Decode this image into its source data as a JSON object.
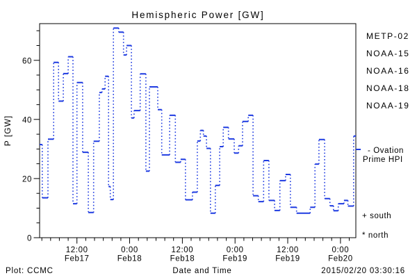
{
  "chart_data": {
    "type": "line",
    "subtype": "step",
    "title": "Hemispheric Power [GW]",
    "ylabel": "P [GW]",
    "xlabel": "Date and Time",
    "ylim": [
      0,
      72.4
    ],
    "y_ticks": [
      {
        "v": 0,
        "label": "0"
      },
      {
        "v": 20,
        "label": "20"
      },
      {
        "v": 40,
        "label": "40"
      },
      {
        "v": 60,
        "label": "60"
      }
    ],
    "y_minor_step": 5,
    "x_hours_total": 72,
    "x_start": "2015/02/17 03:30",
    "x_major_ticks": [
      {
        "hour": 8.5,
        "time": "12:00",
        "date": "Feb17"
      },
      {
        "hour": 20.5,
        "time": "0:00",
        "date": "Feb18"
      },
      {
        "hour": 32.5,
        "time": "12:00",
        "date": "Feb18"
      },
      {
        "hour": 44.5,
        "time": "0:00",
        "date": "Feb19"
      },
      {
        "hour": 56.5,
        "time": "12:00",
        "date": "Feb19"
      },
      {
        "hour": 68.5,
        "time": "0:00",
        "date": "Feb20"
      }
    ],
    "x_minor_step_hours": 2,
    "grid": false,
    "series": [
      {
        "name": "Ovation Prime HPI",
        "color": "#1e3be1",
        "style": "step-solid-horizontals-dotted-verticals",
        "end_hour": 72,
        "points": [
          [
            0.0,
            31.5
          ],
          [
            0.6,
            13.5
          ],
          [
            1.9,
            33.3
          ],
          [
            3.2,
            59.3
          ],
          [
            4.3,
            46.2
          ],
          [
            5.4,
            55.5
          ],
          [
            6.5,
            61.2
          ],
          [
            7.6,
            11.5
          ],
          [
            8.5,
            52.5
          ],
          [
            9.8,
            28.9
          ],
          [
            11.1,
            8.5
          ],
          [
            12.3,
            32.6
          ],
          [
            13.6,
            49.1
          ],
          [
            14.2,
            50.3
          ],
          [
            14.9,
            54.6
          ],
          [
            15.7,
            17.3
          ],
          [
            16.1,
            12.9
          ],
          [
            16.8,
            70.9
          ],
          [
            18.0,
            69.5
          ],
          [
            19.1,
            61.8
          ],
          [
            19.8,
            65.0
          ],
          [
            20.9,
            40.5
          ],
          [
            21.5,
            43.0
          ],
          [
            22.9,
            55.4
          ],
          [
            24.2,
            22.5
          ],
          [
            25.0,
            51.0
          ],
          [
            26.9,
            43.3
          ],
          [
            27.8,
            28.0
          ],
          [
            29.6,
            41.4
          ],
          [
            30.9,
            25.5
          ],
          [
            32.1,
            26.5
          ],
          [
            33.2,
            12.8
          ],
          [
            34.8,
            15.4
          ],
          [
            35.9,
            32.7
          ],
          [
            36.6,
            36.3
          ],
          [
            37.3,
            34.4
          ],
          [
            38.0,
            30.2
          ],
          [
            38.9,
            8.3
          ],
          [
            40.0,
            17.7
          ],
          [
            41.0,
            30.8
          ],
          [
            41.8,
            37.3
          ],
          [
            43.0,
            33.4
          ],
          [
            44.3,
            28.6
          ],
          [
            45.3,
            31.1
          ],
          [
            46.2,
            39.3
          ],
          [
            47.5,
            41.4
          ],
          [
            48.6,
            14.2
          ],
          [
            49.8,
            12.2
          ],
          [
            51.0,
            26.1
          ],
          [
            52.2,
            12.6
          ],
          [
            53.5,
            9.2
          ],
          [
            54.7,
            19.3
          ],
          [
            56.0,
            21.4
          ],
          [
            57.1,
            10.3
          ],
          [
            58.5,
            8.3
          ],
          [
            61.6,
            10.3
          ],
          [
            62.7,
            24.9
          ],
          [
            63.6,
            33.2
          ],
          [
            64.9,
            13.2
          ],
          [
            66.1,
            10.8
          ],
          [
            66.9,
            9.1
          ],
          [
            68.0,
            11.5
          ],
          [
            69.3,
            12.6
          ],
          [
            70.2,
            10.7
          ],
          [
            71.5,
            34.4
          ]
        ]
      }
    ],
    "legend": [
      {
        "label": "METP-02",
        "color": "#000000"
      },
      {
        "label": "NOAA-15",
        "color": "#2424e1"
      },
      {
        "label": "NOAA-16",
        "color": "#3ec6f2"
      },
      {
        "label": "NOAA-18",
        "color": "#68e08e"
      },
      {
        "label": "NOAA-19",
        "color": "#ffa21f"
      }
    ],
    "legend_position": "right-outside",
    "annotations": {
      "ovation_line1": "- Ovation",
      "ovation_line2": "Prime HPI",
      "south_marker": "+ south",
      "north_marker": "* north"
    },
    "footer": {
      "left": "Plot: CCMC",
      "right": "2015/02/20 03:30:16"
    }
  }
}
